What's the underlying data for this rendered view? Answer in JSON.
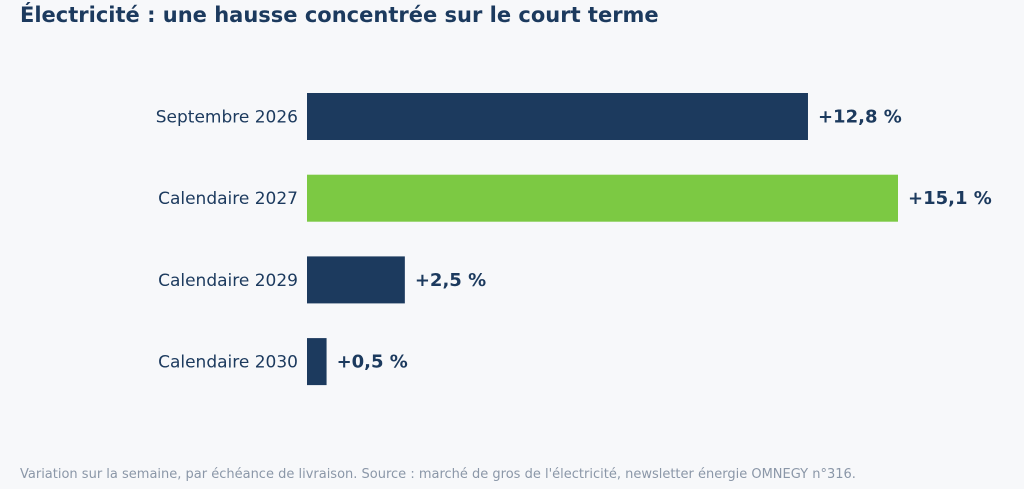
{
  "chart_data": {
    "type": "bar",
    "orientation": "horizontal",
    "title": "Électricité : une hausse concentrée sur le court terme",
    "caption": "Variation sur la semaine, par échéance de livraison. Source : marché de gros de l'électricité, newsletter énergie OMNEGY n°316.",
    "categories": [
      "Septembre 2026",
      "Calendaire 2027",
      "Calendaire 2029",
      "Calendaire 2030"
    ],
    "values": [
      12.8,
      15.1,
      2.5,
      0.5
    ],
    "value_labels": [
      "+12,8 %",
      "+15,1 %",
      "+2,5 %",
      "+0,5 %"
    ],
    "xlabel": "",
    "ylabel": "",
    "xlim": [
      0,
      15.1
    ],
    "grid": false,
    "legend": "none",
    "colors": {
      "default": "#1c3a5e",
      "highlight": "#7cc943",
      "highlight_category": "Calendaire 2027",
      "text": "#1c3a5e",
      "caption": "#8b97a8",
      "background": "#f7f8fa"
    }
  }
}
